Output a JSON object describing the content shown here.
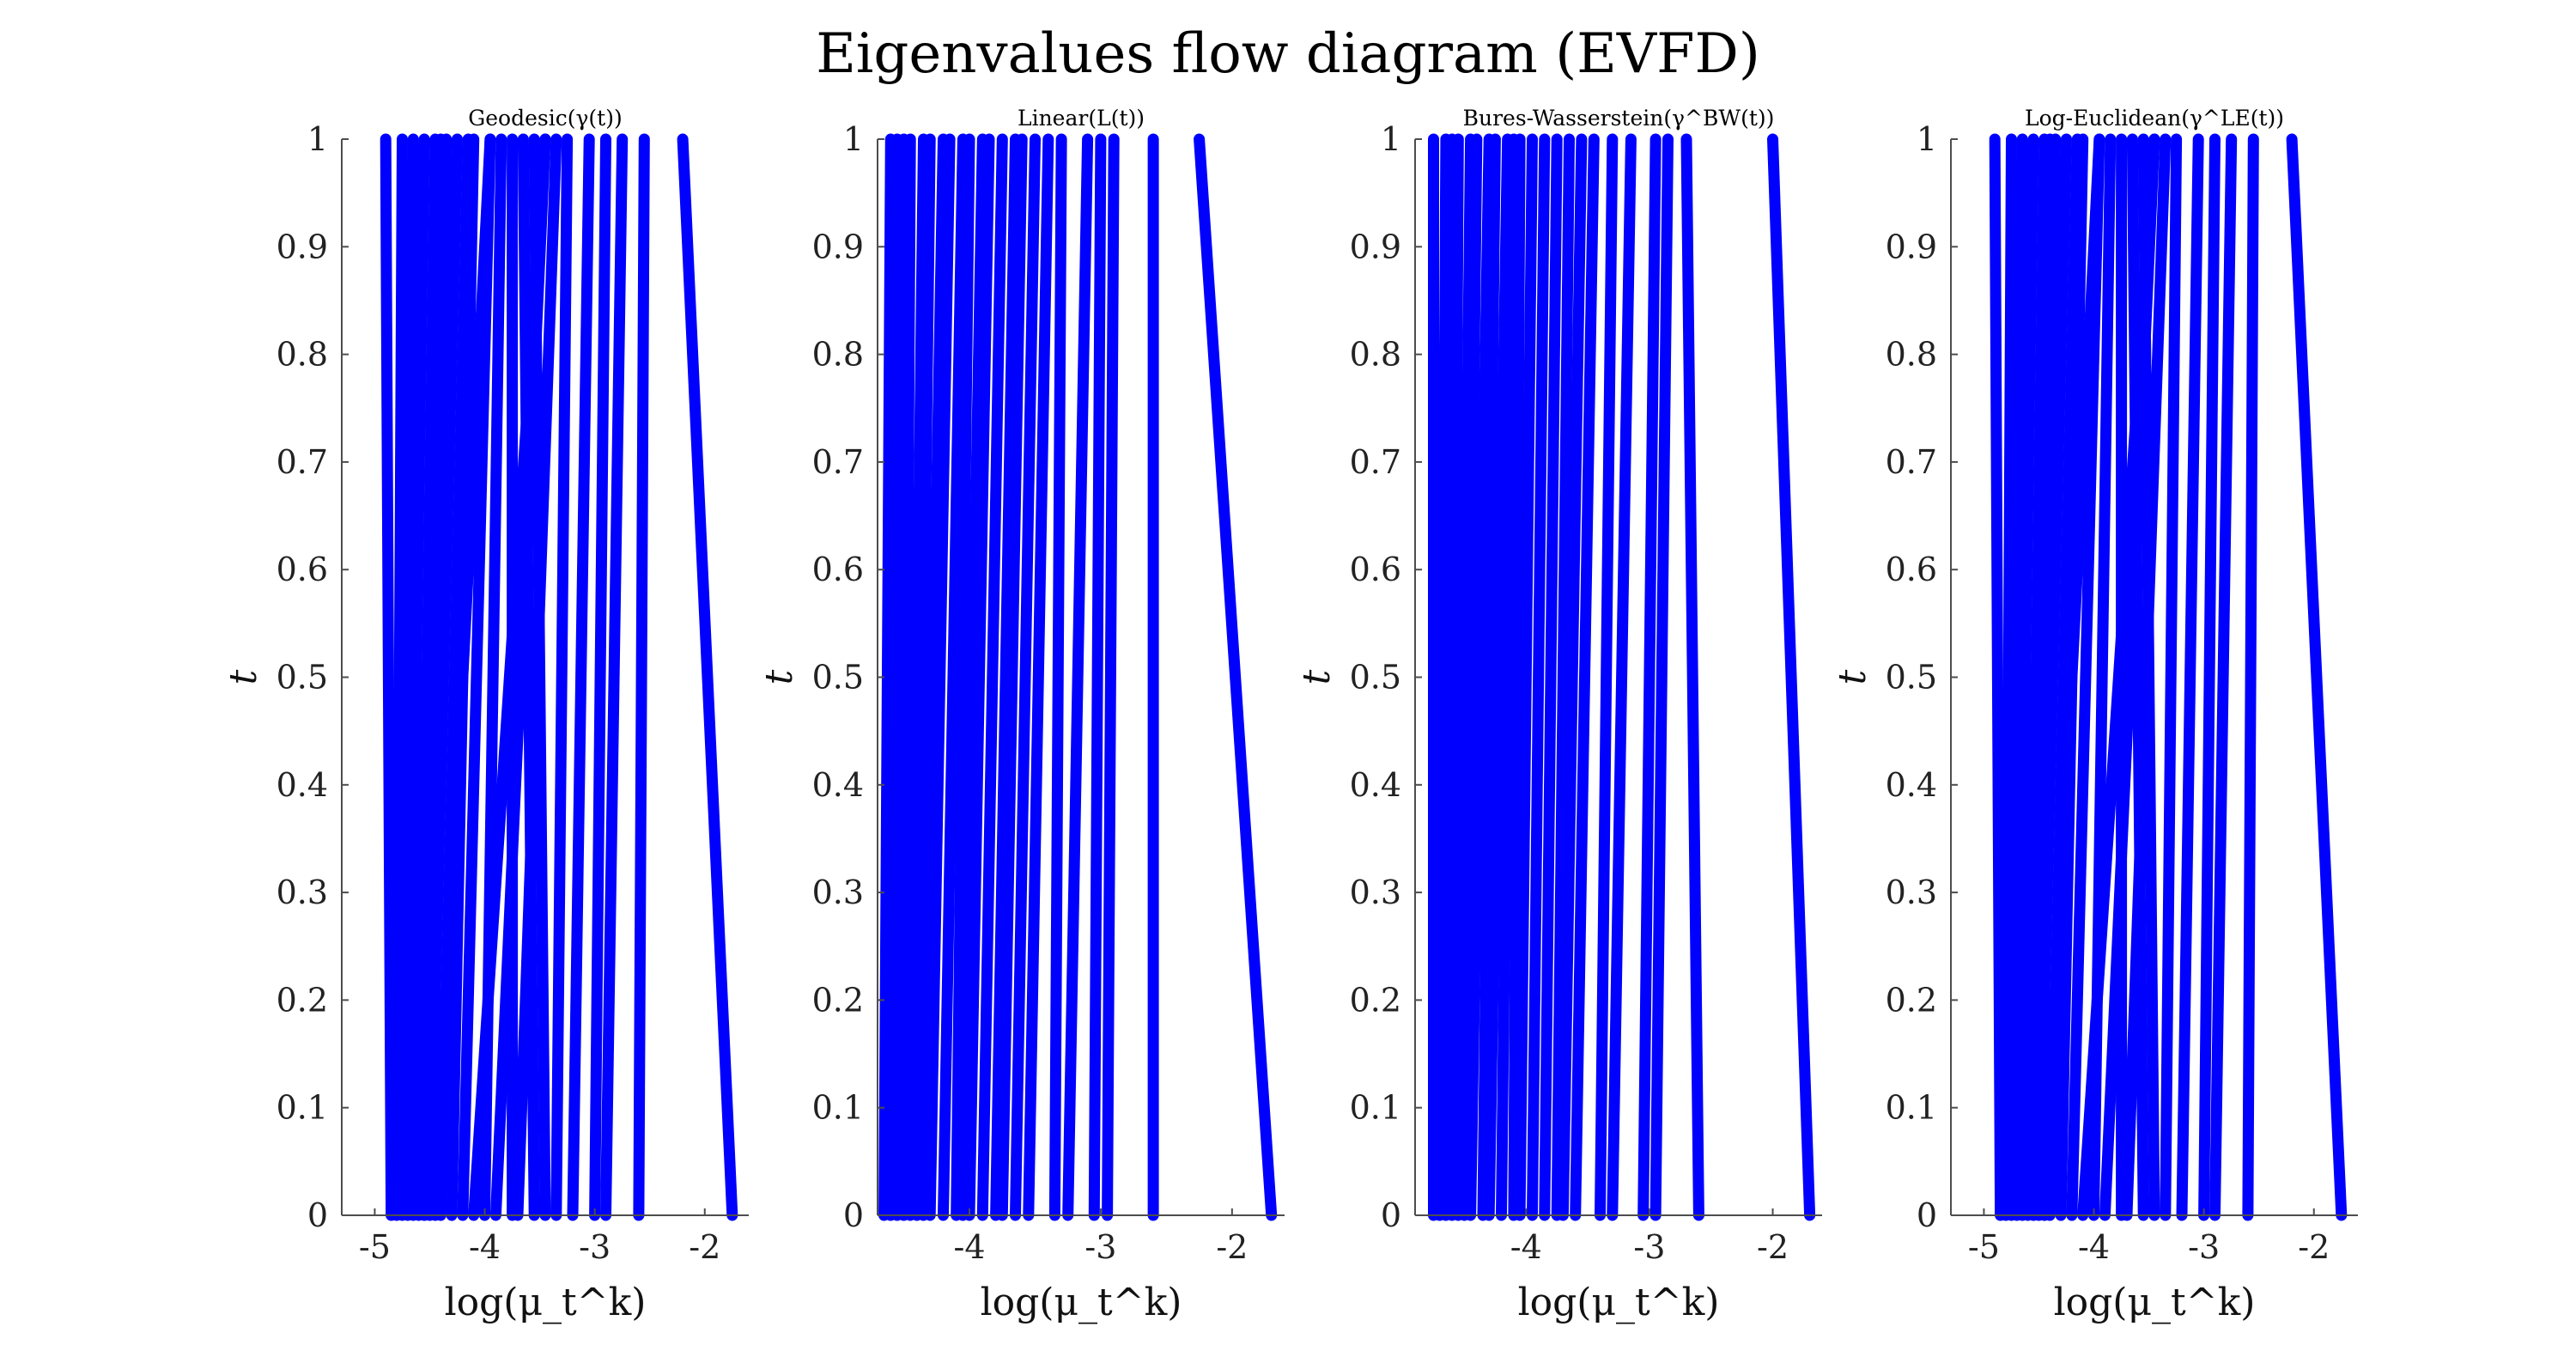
{
  "figure_title": "Eigenvalues flow diagram (EVFD)",
  "chart_data": [
    {
      "type": "line",
      "title": "Geodesic(γ(t))",
      "xlabel": "log(μ_t^k)",
      "ylabel": "t",
      "xlim": [
        -5.3,
        -1.6
      ],
      "ylim": [
        0,
        1
      ],
      "xticks": [
        -5,
        -4,
        -3,
        -2
      ],
      "yticks": [
        0,
        0.1,
        0.2,
        0.3,
        0.4,
        0.5,
        0.6,
        0.7,
        0.8,
        0.9,
        1
      ],
      "grid": false,
      "color": "#0000ff",
      "series": [
        {
          "x": [
            -1.75,
            -2.2
          ]
        },
        {
          "x": [
            -2.6,
            -2.55
          ]
        },
        {
          "x": [
            -2.9,
            -2.75
          ]
        },
        {
          "x": [
            -3.0,
            -2.9
          ]
        },
        {
          "x": [
            -3.2,
            -3.05
          ]
        },
        {
          "x": [
            -3.35,
            -3.25
          ]
        },
        {
          "x": [
            -3.45,
            -3.55
          ]
        },
        {
          "x": [
            -3.55,
            -3.65
          ]
        },
        {
          "x": [
            -3.7,
            -3.35
          ]
        },
        {
          "x": [
            -3.75,
            -3.75
          ]
        },
        {
          "x": [
            -3.9,
            -3.45
          ]
        },
        {
          "x": [
            -4.0,
            -3.85
          ]
        },
        {
          "x": [
            -4.1,
            -3.45
          ]
        },
        {
          "x": [
            -4.2,
            -3.95
          ]
        },
        {
          "x": [
            -4.3,
            -4.1
          ]
        },
        {
          "x": [
            -4.4,
            -4.15
          ]
        },
        {
          "x": [
            -4.45,
            -3.95
          ]
        },
        {
          "x": [
            -4.5,
            -4.25
          ]
        },
        {
          "x": [
            -4.55,
            -4.35
          ]
        },
        {
          "x": [
            -4.6,
            -4.45
          ]
        },
        {
          "x": [
            -4.65,
            -4.4
          ]
        },
        {
          "x": [
            -4.7,
            -4.55
          ]
        },
        {
          "x": [
            -4.75,
            -4.65
          ]
        },
        {
          "x": [
            -4.8,
            -4.75
          ]
        },
        {
          "x": [
            -4.85,
            -4.9
          ]
        }
      ]
    },
    {
      "type": "line",
      "title": "Linear(L(t))",
      "xlabel": "log(μ_t^k)",
      "ylabel": "t",
      "xlim": [
        -4.7,
        -1.6
      ],
      "ylim": [
        0,
        1
      ],
      "xticks": [
        -4,
        -3,
        -2
      ],
      "yticks": [
        0,
        0.1,
        0.2,
        0.3,
        0.4,
        0.5,
        0.6,
        0.7,
        0.8,
        0.9,
        1
      ],
      "grid": false,
      "color": "#0000ff",
      "series": [
        {
          "x": [
            -1.7,
            -2.25
          ]
        },
        {
          "x": [
            -2.6,
            -2.6
          ]
        },
        {
          "x": [
            -2.95,
            -2.9
          ]
        },
        {
          "x": [
            -3.05,
            -3.0
          ]
        },
        {
          "x": [
            -3.25,
            -3.1
          ]
        },
        {
          "x": [
            -3.35,
            -3.3
          ]
        },
        {
          "x": [
            -3.55,
            -3.4
          ]
        },
        {
          "x": [
            -3.65,
            -3.5
          ]
        },
        {
          "x": [
            -3.75,
            -3.6
          ]
        },
        {
          "x": [
            -3.8,
            -3.65
          ]
        },
        {
          "x": [
            -3.9,
            -3.75
          ]
        },
        {
          "x": [
            -4.0,
            -3.85
          ]
        },
        {
          "x": [
            -4.05,
            -3.9
          ]
        },
        {
          "x": [
            -4.1,
            -4.0
          ]
        },
        {
          "x": [
            -4.2,
            -4.05
          ]
        },
        {
          "x": [
            -4.3,
            -4.15
          ]
        },
        {
          "x": [
            -4.35,
            -4.2
          ]
        },
        {
          "x": [
            -4.4,
            -4.3
          ]
        },
        {
          "x": [
            -4.45,
            -4.35
          ]
        },
        {
          "x": [
            -4.5,
            -4.45
          ]
        },
        {
          "x": [
            -4.55,
            -4.5
          ]
        },
        {
          "x": [
            -4.6,
            -4.55
          ]
        },
        {
          "x": [
            -4.65,
            -4.6
          ]
        }
      ]
    },
    {
      "type": "line",
      "title": "Bures-Wasserstein(γ^BW(t))",
      "xlabel": "log(μ_t^k)",
      "ylabel": "t",
      "xlim": [
        -4.9,
        -1.6
      ],
      "ylim": [
        0,
        1
      ],
      "xticks": [
        -4,
        -3,
        -2
      ],
      "yticks": [
        0,
        0.1,
        0.2,
        0.3,
        0.4,
        0.5,
        0.6,
        0.7,
        0.8,
        0.9,
        1
      ],
      "grid": false,
      "color": "#0000ff",
      "series": [
        {
          "x": [
            -1.7,
            -2.0
          ]
        },
        {
          "x": [
            -2.6,
            -2.7
          ]
        },
        {
          "x": [
            -2.95,
            -2.85
          ]
        },
        {
          "x": [
            -3.05,
            -2.95
          ]
        },
        {
          "x": [
            -3.3,
            -3.15
          ]
        },
        {
          "x": [
            -3.4,
            -3.3
          ]
        },
        {
          "x": [
            -3.6,
            -3.45
          ]
        },
        {
          "x": [
            -3.7,
            -3.55
          ]
        },
        {
          "x": [
            -3.75,
            -3.65
          ]
        },
        {
          "x": [
            -3.85,
            -3.75
          ]
        },
        {
          "x": [
            -3.95,
            -3.85
          ]
        },
        {
          "x": [
            -4.05,
            -3.95
          ]
        },
        {
          "x": [
            -4.1,
            -4.05
          ]
        },
        {
          "x": [
            -4.2,
            -4.1
          ]
        },
        {
          "x": [
            -4.3,
            -4.15
          ]
        },
        {
          "x": [
            -4.35,
            -4.25
          ]
        },
        {
          "x": [
            -4.45,
            -4.3
          ]
        },
        {
          "x": [
            -4.5,
            -4.4
          ]
        },
        {
          "x": [
            -4.55,
            -4.45
          ]
        },
        {
          "x": [
            -4.6,
            -4.55
          ]
        },
        {
          "x": [
            -4.65,
            -4.6
          ]
        },
        {
          "x": [
            -4.7,
            -4.65
          ]
        },
        {
          "x": [
            -4.75,
            -4.75
          ]
        }
      ]
    },
    {
      "type": "line",
      "title": "Log-Euclidean(γ^LE(t))",
      "xlabel": "log(μ_t^k)",
      "ylabel": "t",
      "xlim": [
        -5.3,
        -1.6
      ],
      "ylim": [
        0,
        1
      ],
      "xticks": [
        -5,
        -4,
        -3,
        -2
      ],
      "yticks": [
        0,
        0.1,
        0.2,
        0.3,
        0.4,
        0.5,
        0.6,
        0.7,
        0.8,
        0.9,
        1
      ],
      "grid": false,
      "color": "#0000ff",
      "series": [
        {
          "x": [
            -1.75,
            -2.2
          ]
        },
        {
          "x": [
            -2.6,
            -2.55
          ]
        },
        {
          "x": [
            -2.9,
            -2.75
          ]
        },
        {
          "x": [
            -3.0,
            -2.9
          ]
        },
        {
          "x": [
            -3.2,
            -3.05
          ]
        },
        {
          "x": [
            -3.35,
            -3.25
          ]
        },
        {
          "x": [
            -3.45,
            -3.55
          ]
        },
        {
          "x": [
            -3.55,
            -3.65
          ]
        },
        {
          "x": [
            -3.7,
            -3.35
          ]
        },
        {
          "x": [
            -3.75,
            -3.75
          ]
        },
        {
          "x": [
            -3.9,
            -3.45
          ]
        },
        {
          "x": [
            -4.0,
            -3.85
          ]
        },
        {
          "x": [
            -4.1,
            -3.45
          ]
        },
        {
          "x": [
            -4.2,
            -3.95
          ]
        },
        {
          "x": [
            -4.3,
            -4.1
          ]
        },
        {
          "x": [
            -4.4,
            -4.15
          ]
        },
        {
          "x": [
            -4.45,
            -3.95
          ]
        },
        {
          "x": [
            -4.5,
            -4.25
          ]
        },
        {
          "x": [
            -4.55,
            -4.35
          ]
        },
        {
          "x": [
            -4.6,
            -4.45
          ]
        },
        {
          "x": [
            -4.65,
            -4.4
          ]
        },
        {
          "x": [
            -4.7,
            -4.55
          ]
        },
        {
          "x": [
            -4.75,
            -4.65
          ]
        },
        {
          "x": [
            -4.8,
            -4.75
          ]
        },
        {
          "x": [
            -4.85,
            -4.9
          ]
        }
      ]
    }
  ]
}
